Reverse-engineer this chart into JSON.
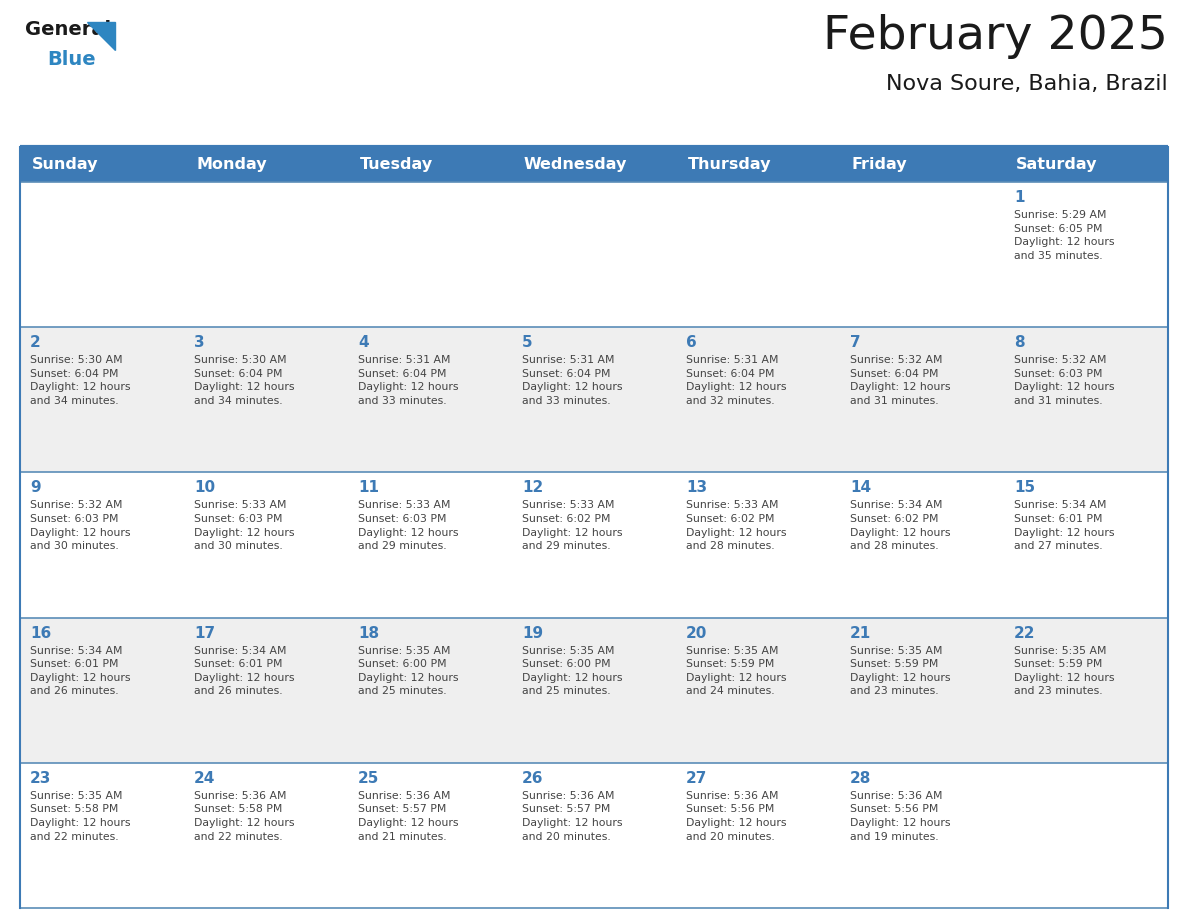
{
  "title": "February 2025",
  "subtitle": "Nova Soure, Bahia, Brazil",
  "header_bg": "#3D7AB5",
  "header_text_color": "#FFFFFF",
  "day_names": [
    "Sunday",
    "Monday",
    "Tuesday",
    "Wednesday",
    "Thursday",
    "Friday",
    "Saturday"
  ],
  "row_bg_odd": "#FFFFFF",
  "row_bg_even": "#EFEFEF",
  "border_color": "#3D7AB5",
  "row_line_color": "#5B8DB8",
  "day_number_color": "#3D7AB5",
  "cell_text_color": "#444444",
  "title_color": "#1A1A1A",
  "subtitle_color": "#1A1A1A",
  "logo_general_color": "#1A1A1A",
  "logo_blue_color": "#2E86C1",
  "weeks": [
    [
      {
        "day": null,
        "info": null
      },
      {
        "day": null,
        "info": null
      },
      {
        "day": null,
        "info": null
      },
      {
        "day": null,
        "info": null
      },
      {
        "day": null,
        "info": null
      },
      {
        "day": null,
        "info": null
      },
      {
        "day": 1,
        "info": "Sunrise: 5:29 AM\nSunset: 6:05 PM\nDaylight: 12 hours\nand 35 minutes."
      }
    ],
    [
      {
        "day": 2,
        "info": "Sunrise: 5:30 AM\nSunset: 6:04 PM\nDaylight: 12 hours\nand 34 minutes."
      },
      {
        "day": 3,
        "info": "Sunrise: 5:30 AM\nSunset: 6:04 PM\nDaylight: 12 hours\nand 34 minutes."
      },
      {
        "day": 4,
        "info": "Sunrise: 5:31 AM\nSunset: 6:04 PM\nDaylight: 12 hours\nand 33 minutes."
      },
      {
        "day": 5,
        "info": "Sunrise: 5:31 AM\nSunset: 6:04 PM\nDaylight: 12 hours\nand 33 minutes."
      },
      {
        "day": 6,
        "info": "Sunrise: 5:31 AM\nSunset: 6:04 PM\nDaylight: 12 hours\nand 32 minutes."
      },
      {
        "day": 7,
        "info": "Sunrise: 5:32 AM\nSunset: 6:04 PM\nDaylight: 12 hours\nand 31 minutes."
      },
      {
        "day": 8,
        "info": "Sunrise: 5:32 AM\nSunset: 6:03 PM\nDaylight: 12 hours\nand 31 minutes."
      }
    ],
    [
      {
        "day": 9,
        "info": "Sunrise: 5:32 AM\nSunset: 6:03 PM\nDaylight: 12 hours\nand 30 minutes."
      },
      {
        "day": 10,
        "info": "Sunrise: 5:33 AM\nSunset: 6:03 PM\nDaylight: 12 hours\nand 30 minutes."
      },
      {
        "day": 11,
        "info": "Sunrise: 5:33 AM\nSunset: 6:03 PM\nDaylight: 12 hours\nand 29 minutes."
      },
      {
        "day": 12,
        "info": "Sunrise: 5:33 AM\nSunset: 6:02 PM\nDaylight: 12 hours\nand 29 minutes."
      },
      {
        "day": 13,
        "info": "Sunrise: 5:33 AM\nSunset: 6:02 PM\nDaylight: 12 hours\nand 28 minutes."
      },
      {
        "day": 14,
        "info": "Sunrise: 5:34 AM\nSunset: 6:02 PM\nDaylight: 12 hours\nand 28 minutes."
      },
      {
        "day": 15,
        "info": "Sunrise: 5:34 AM\nSunset: 6:01 PM\nDaylight: 12 hours\nand 27 minutes."
      }
    ],
    [
      {
        "day": 16,
        "info": "Sunrise: 5:34 AM\nSunset: 6:01 PM\nDaylight: 12 hours\nand 26 minutes."
      },
      {
        "day": 17,
        "info": "Sunrise: 5:34 AM\nSunset: 6:01 PM\nDaylight: 12 hours\nand 26 minutes."
      },
      {
        "day": 18,
        "info": "Sunrise: 5:35 AM\nSunset: 6:00 PM\nDaylight: 12 hours\nand 25 minutes."
      },
      {
        "day": 19,
        "info": "Sunrise: 5:35 AM\nSunset: 6:00 PM\nDaylight: 12 hours\nand 25 minutes."
      },
      {
        "day": 20,
        "info": "Sunrise: 5:35 AM\nSunset: 5:59 PM\nDaylight: 12 hours\nand 24 minutes."
      },
      {
        "day": 21,
        "info": "Sunrise: 5:35 AM\nSunset: 5:59 PM\nDaylight: 12 hours\nand 23 minutes."
      },
      {
        "day": 22,
        "info": "Sunrise: 5:35 AM\nSunset: 5:59 PM\nDaylight: 12 hours\nand 23 minutes."
      }
    ],
    [
      {
        "day": 23,
        "info": "Sunrise: 5:35 AM\nSunset: 5:58 PM\nDaylight: 12 hours\nand 22 minutes."
      },
      {
        "day": 24,
        "info": "Sunrise: 5:36 AM\nSunset: 5:58 PM\nDaylight: 12 hours\nand 22 minutes."
      },
      {
        "day": 25,
        "info": "Sunrise: 5:36 AM\nSunset: 5:57 PM\nDaylight: 12 hours\nand 21 minutes."
      },
      {
        "day": 26,
        "info": "Sunrise: 5:36 AM\nSunset: 5:57 PM\nDaylight: 12 hours\nand 20 minutes."
      },
      {
        "day": 27,
        "info": "Sunrise: 5:36 AM\nSunset: 5:56 PM\nDaylight: 12 hours\nand 20 minutes."
      },
      {
        "day": 28,
        "info": "Sunrise: 5:36 AM\nSunset: 5:56 PM\nDaylight: 12 hours\nand 19 minutes."
      },
      {
        "day": null,
        "info": null
      }
    ]
  ]
}
